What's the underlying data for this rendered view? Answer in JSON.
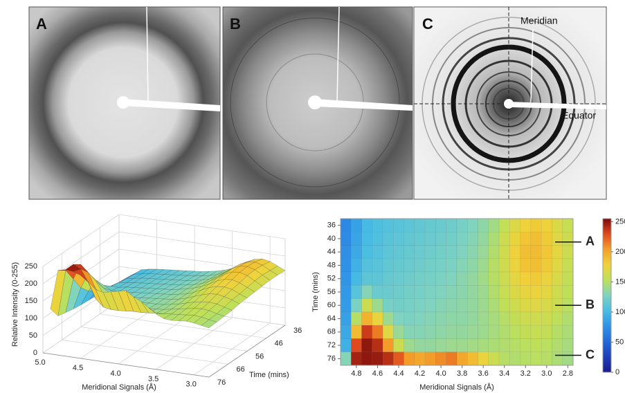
{
  "panels": [
    {
      "label": "A"
    },
    {
      "label": "B"
    },
    {
      "label": "C",
      "annotations": [
        "Meridian",
        "Equator"
      ]
    }
  ],
  "chart_data": [
    {
      "type": "surface",
      "zlabel": "Relative Intensity (0-255)",
      "xlabel": "Meridional Signals (Å)",
      "ylabel": "Time (mins)",
      "xlim": [
        5.0,
        2.8
      ],
      "ylim": [
        76,
        36
      ],
      "zlim": [
        0,
        250
      ],
      "xticks": [
        {
          "value": 5.0,
          "label": "5.0"
        },
        4.5,
        {
          "value": 4.0,
          "label": "4.0"
        },
        3.5,
        {
          "value": 3.0,
          "label": "3.0"
        }
      ],
      "yticks": [
        36,
        46,
        56,
        66,
        76
      ],
      "zticks": [
        0,
        50,
        100,
        150,
        200,
        250
      ]
    },
    {
      "type": "heatmap",
      "xlabel": "Meridional Signals (Å)",
      "ylabel": "Time (mins)",
      "x": [
        4.9,
        4.8,
        4.7,
        4.6,
        4.5,
        4.4,
        4.3,
        4.2,
        4.1,
        4.0,
        3.9,
        3.8,
        3.7,
        3.6,
        3.5,
        3.4,
        3.3,
        3.2,
        3.1,
        3.0,
        2.9,
        2.8
      ],
      "y": [
        36,
        40,
        44,
        48,
        52,
        56,
        60,
        64,
        68,
        72,
        76
      ],
      "z": [
        [
          70,
          85,
          100,
          105,
          108,
          110,
          112,
          114,
          116,
          118,
          120,
          124,
          128,
          134,
          142,
          155,
          168,
          178,
          182,
          178,
          168,
          158
        ],
        [
          72,
          88,
          102,
          106,
          110,
          112,
          114,
          116,
          118,
          120,
          122,
          126,
          130,
          136,
          146,
          160,
          175,
          185,
          188,
          182,
          170,
          160
        ],
        [
          74,
          90,
          104,
          108,
          112,
          114,
          116,
          118,
          120,
          122,
          124,
          128,
          132,
          138,
          148,
          162,
          178,
          188,
          190,
          184,
          172,
          160
        ],
        [
          76,
          95,
          108,
          110,
          114,
          116,
          118,
          120,
          122,
          124,
          126,
          130,
          134,
          140,
          150,
          162,
          176,
          186,
          188,
          182,
          170,
          158
        ],
        [
          78,
          100,
          112,
          112,
          116,
          118,
          120,
          122,
          124,
          126,
          128,
          132,
          136,
          142,
          150,
          160,
          172,
          180,
          182,
          176,
          166,
          156
        ],
        [
          80,
          110,
          130,
          118,
          118,
          120,
          122,
          124,
          126,
          128,
          130,
          132,
          136,
          140,
          148,
          158,
          168,
          174,
          176,
          172,
          162,
          154
        ],
        [
          82,
          125,
          160,
          140,
          124,
          122,
          124,
          126,
          128,
          130,
          132,
          134,
          136,
          140,
          146,
          154,
          162,
          168,
          170,
          166,
          160,
          152
        ],
        [
          85,
          150,
          195,
          175,
          140,
          128,
          126,
          128,
          130,
          132,
          134,
          134,
          136,
          140,
          144,
          150,
          156,
          160,
          162,
          160,
          154,
          148
        ],
        [
          90,
          190,
          235,
          215,
          170,
          138,
          130,
          130,
          132,
          134,
          136,
          136,
          138,
          140,
          144,
          148,
          152,
          156,
          158,
          156,
          150,
          146
        ],
        [
          95,
          230,
          250,
          240,
          205,
          160,
          140,
          136,
          136,
          138,
          140,
          140,
          142,
          144,
          146,
          148,
          150,
          152,
          154,
          152,
          148,
          144
        ],
        [
          130,
          245,
          250,
          248,
          240,
          225,
          205,
          200,
          205,
          210,
          215,
          200,
          190,
          175,
          160,
          150,
          148,
          150,
          152,
          150,
          146,
          142
        ]
      ],
      "xlim": [
        4.95,
        2.75
      ],
      "ylim": [
        34,
        78
      ],
      "xticks": [
        4.8,
        4.6,
        4.4,
        4.2,
        {
          "value": 4.0,
          "label": "4.0"
        },
        3.8,
        3.6,
        3.4,
        3.2,
        {
          "value": 3.0,
          "label": "3.0"
        },
        2.8
      ],
      "yticks": [
        36,
        40,
        44,
        48,
        52,
        56,
        60,
        64,
        68,
        72,
        76
      ],
      "clim": [
        0,
        255
      ],
      "cticks": [
        0,
        50,
        100,
        150,
        200,
        250
      ],
      "colorscale": [
        "#1a1a8a",
        "#1e3fb8",
        "#2368d8",
        "#2f93e6",
        "#48bce4",
        "#7fd3c0",
        "#bde05a",
        "#f0d23a",
        "#f3a02a",
        "#e04a1e",
        "#7a0a0a"
      ],
      "annotations": [
        {
          "text": "A",
          "y": 41
        },
        {
          "text": "B",
          "y": 60
        },
        {
          "text": "C",
          "y": 75
        }
      ]
    }
  ]
}
